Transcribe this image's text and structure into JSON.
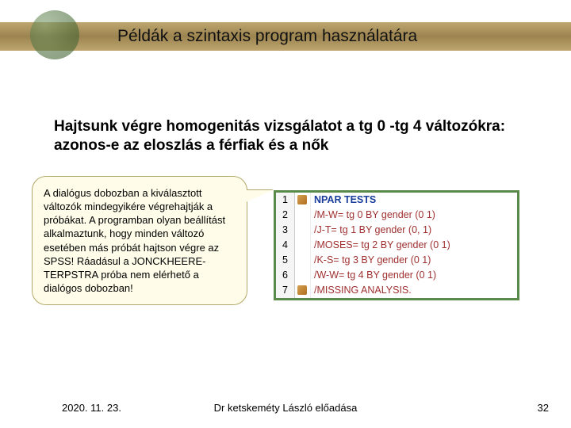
{
  "title": "Példák a szintaxis program használatára",
  "subtitle": "Hajtsunk végre homogenitás vizsgálatot a tg 0 -tg 4 változókra: azonos-e az eloszlás a férfiak és a nők",
  "callout": "A dialógus dobozban a kiválasztott változók mindegyikére végrehajtják a próbákat. A programban olyan beállítást alkalmaztunk, hogy minden változó esetében más próbát hajtson végre az SPSS! Ráadásul a JONCKHEERE-TERPSTRA próba nem elérhető a dialógos dobozban!",
  "code": {
    "line_numbers": [
      "1",
      "2",
      "3",
      "4",
      "5",
      "6",
      "7"
    ],
    "lines": [
      {
        "kw": "NPAR TESTS",
        "rest": ""
      },
      {
        "kw": "",
        "cmd": "/M-W= tg 0 BY gender (0 1)"
      },
      {
        "kw": "",
        "cmd": "/J-T= tg 1 BY gender (0, 1)"
      },
      {
        "kw": "",
        "cmd": "/MOSES= tg 2 BY gender (0 1)"
      },
      {
        "kw": "",
        "cmd": "/K-S= tg 3 BY gender (0 1)"
      },
      {
        "kw": "",
        "cmd": "/W-W= tg 4 BY gender (0 1)"
      },
      {
        "kw": "",
        "cmd": "/MISSING ANALYSIS."
      }
    ],
    "colors": {
      "keyword": "#1a3d9c",
      "command": "#a03030",
      "border": "#5a8a4a"
    }
  },
  "footer": {
    "date": "2020. 11. 23.",
    "center": "Dr ketskeméty László előadása",
    "page": "32"
  }
}
